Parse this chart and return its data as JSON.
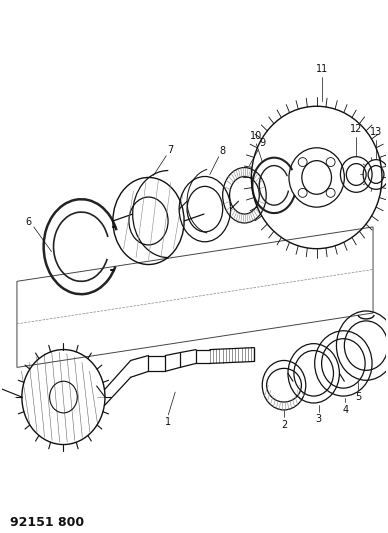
{
  "title": "92151 800",
  "bg_color": "#ffffff",
  "line_color": "#000000",
  "fig_width": 3.88,
  "fig_height": 5.33,
  "dpi": 100
}
